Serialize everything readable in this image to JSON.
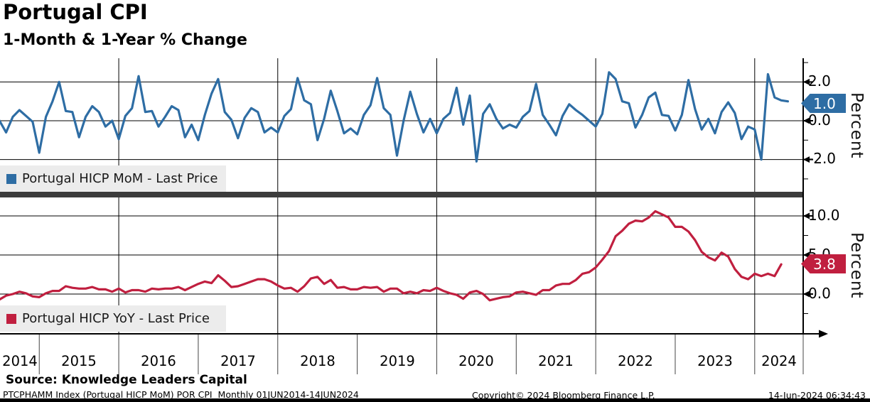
{
  "header": {
    "title": "Portugal CPI",
    "subtitle": "1-Month & 1-Year % Change"
  },
  "panels": {
    "top": {
      "legend_label": "Portugal HICP MoM - Last Price",
      "last_price_label": "1.0",
      "axis_title": "Percent",
      "tick_labels": [
        "2.0",
        "0.0",
        "-2.0"
      ]
    },
    "bottom": {
      "legend_label": "Portugal HICP YoY - Last Price",
      "last_price_label": "3.8",
      "axis_title": "Percent",
      "tick_labels": [
        "10.0",
        "5.0",
        "0.0"
      ]
    }
  },
  "x_axis": {
    "year_labels": [
      "2014",
      "2015",
      "2016",
      "2017",
      "2018",
      "2019",
      "2020",
      "2021",
      "2022",
      "2023",
      "2024"
    ]
  },
  "footer": {
    "source": "Source: Knowledge Leaders Capital",
    "ticker_info": "PTCPHAMM Index (Portugal HICP MoM) POR CPI  Monthly 01JUN2014-14JUN2024",
    "copyright": "Copyright© 2024 Bloomberg Finance L.P.",
    "timestamp": "14-Jun-2024 06:34:43"
  },
  "colors": {
    "mom_line": "#2e6da4",
    "yoy_line": "#c01f3f",
    "mom_badge": "#2e6da4",
    "yoy_badge": "#c01f3f",
    "grid": "#000000",
    "divider": "#3c3c3c",
    "legend_bg": "#ececec"
  },
  "chart_data": [
    {
      "type": "line",
      "title": "Portugal HICP MoM - Last Price",
      "panel": "top",
      "x_start": "2014-06",
      "x_end": "2024-06",
      "frequency": "monthly",
      "ylabel": "Percent",
      "ylim": [
        -3.2,
        3.2
      ],
      "yticks": [
        2.0,
        0.0,
        -2.0
      ],
      "minor_yticks": [
        3.0,
        1.0,
        -1.0,
        -3.0
      ],
      "grid": true,
      "legend_position": "bottom-left",
      "last_price": 1.0,
      "series": [
        {
          "name": "Portugal HICP MoM",
          "values": [
            0.5,
            0.0,
            -0.6,
            0.2,
            0.55,
            0.25,
            -0.05,
            -1.65,
            0.2,
            1.0,
            2.0,
            0.5,
            0.45,
            -0.85,
            0.2,
            0.75,
            0.45,
            -0.3,
            0.0,
            -0.95,
            0.25,
            0.65,
            2.3,
            0.45,
            0.5,
            -0.3,
            0.2,
            0.75,
            0.55,
            -0.85,
            -0.2,
            -1.0,
            0.3,
            1.4,
            2.15,
            0.45,
            0.05,
            -0.9,
            0.15,
            0.65,
            0.45,
            -0.6,
            -0.35,
            -0.6,
            0.25,
            0.6,
            2.2,
            1.05,
            0.85,
            -1.0,
            0.1,
            1.55,
            0.5,
            -0.65,
            -0.4,
            -0.7,
            0.3,
            0.8,
            2.2,
            0.65,
            0.3,
            -1.8,
            0.0,
            1.5,
            0.35,
            -0.6,
            0.1,
            -0.65,
            0.1,
            0.4,
            1.7,
            -0.2,
            1.3,
            -2.1,
            0.35,
            0.85,
            0.1,
            -0.4,
            -0.2,
            -0.35,
            0.2,
            0.5,
            1.9,
            0.3,
            -0.2,
            -0.75,
            0.25,
            0.85,
            0.55,
            0.3,
            0.0,
            -0.3,
            0.35,
            2.5,
            2.15,
            1.0,
            0.9,
            -0.35,
            0.3,
            1.2,
            1.45,
            0.3,
            0.25,
            -0.5,
            0.3,
            2.1,
            0.6,
            -0.45,
            0.1,
            -0.65,
            0.45,
            0.95,
            0.4,
            -0.95,
            -0.3,
            -0.45,
            -2.0,
            2.4,
            1.2,
            1.05,
            1.0
          ]
        }
      ]
    },
    {
      "type": "line",
      "title": "Portugal HICP YoY - Last Price",
      "panel": "bottom",
      "x_start": "2014-06",
      "x_end": "2024-05",
      "frequency": "monthly",
      "ylabel": "Percent",
      "ylim": [
        -5.1,
        12.4
      ],
      "yticks": [
        10.0,
        5.0,
        0.0
      ],
      "minor_yticks": [
        7.5,
        -2.5
      ],
      "grid": true,
      "legend_position": "bottom-left",
      "last_price": 3.8,
      "series": [
        {
          "name": "Portugal HICP YoY",
          "values": [
            -0.2,
            -0.7,
            -0.2,
            0.0,
            0.3,
            0.1,
            -0.3,
            -0.4,
            0.1,
            0.4,
            0.4,
            1.0,
            0.8,
            0.7,
            0.7,
            0.9,
            0.6,
            0.6,
            0.3,
            0.7,
            0.2,
            0.5,
            0.5,
            0.3,
            0.7,
            0.6,
            0.7,
            0.7,
            0.9,
            0.5,
            0.9,
            1.3,
            1.6,
            1.4,
            2.4,
            1.7,
            0.9,
            1.0,
            1.3,
            1.6,
            1.9,
            1.9,
            1.6,
            1.1,
            0.7,
            0.8,
            0.3,
            1.0,
            2.0,
            2.2,
            1.3,
            1.8,
            0.8,
            0.9,
            0.6,
            0.6,
            0.9,
            0.8,
            0.9,
            0.3,
            0.7,
            0.7,
            0.1,
            0.3,
            0.1,
            0.5,
            0.4,
            0.8,
            0.4,
            0.1,
            -0.1,
            -0.6,
            0.2,
            0.4,
            0.0,
            -0.8,
            -0.6,
            -0.4,
            -0.3,
            0.2,
            0.3,
            0.1,
            -0.1,
            0.5,
            0.5,
            1.1,
            1.3,
            1.3,
            1.8,
            2.6,
            2.8,
            3.4,
            4.4,
            5.5,
            7.4,
            8.1,
            9.0,
            9.4,
            9.3,
            9.8,
            10.6,
            10.2,
            9.8,
            8.6,
            8.6,
            8.0,
            6.9,
            5.4,
            4.7,
            4.3,
            5.3,
            4.8,
            3.2,
            2.2,
            1.9,
            2.6,
            2.3,
            2.6,
            2.3,
            3.8
          ]
        }
      ]
    }
  ]
}
